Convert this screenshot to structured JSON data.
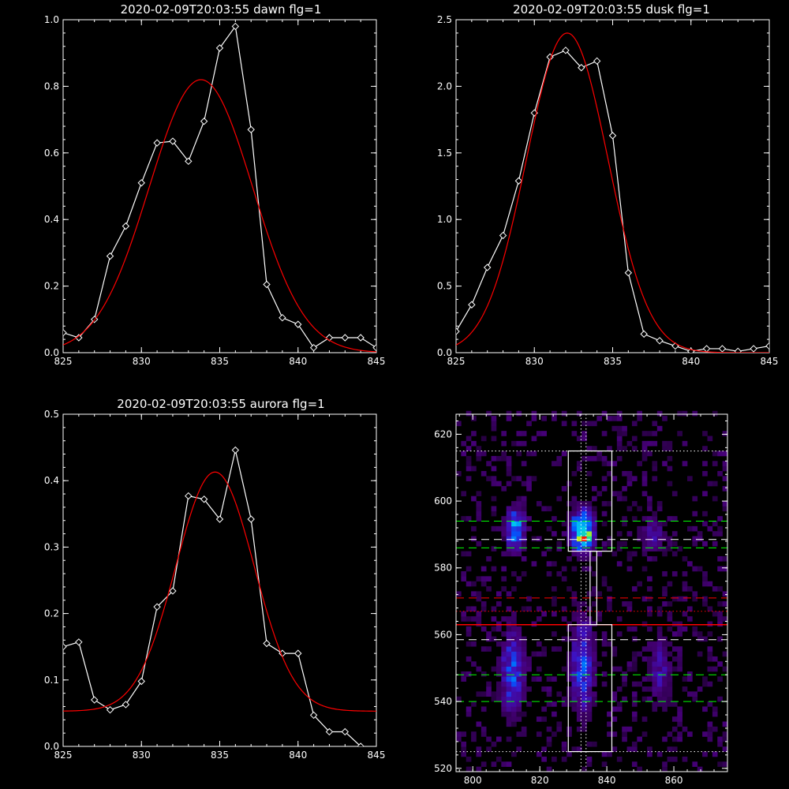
{
  "chart_data": [
    {
      "type": "line",
      "title": "2020-02-09T20:03:55 dawn flg=1",
      "xlim": [
        825,
        845
      ],
      "ylim": [
        0,
        1.0
      ],
      "xticks": [
        "825",
        "830",
        "835",
        "840",
        "845"
      ],
      "yticks": [
        "0.0",
        "0.2",
        "0.4",
        "0.6",
        "0.8",
        "1.0"
      ],
      "series": [
        {
          "style": "data-diamonds",
          "color": "#ffffff",
          "x": [
            825,
            826,
            827,
            828,
            829,
            830,
            831,
            832,
            833,
            834,
            835,
            836,
            837,
            838,
            839,
            840,
            841,
            842,
            843,
            844,
            845
          ],
          "y": [
            0.06,
            0.045,
            0.1,
            0.29,
            0.38,
            0.51,
            0.63,
            0.635,
            0.575,
            0.695,
            0.915,
            0.98,
            0.67,
            0.205,
            0.105,
            0.085,
            0.015,
            0.045,
            0.045,
            0.045,
            0.015
          ]
        },
        {
          "style": "gaussian-fit",
          "color": "#ff0000",
          "amplitude": 0.82,
          "center": 833.8,
          "sigma": 3.3,
          "offset": 0.0
        }
      ]
    },
    {
      "type": "line",
      "title": "2020-02-09T20:03:55 dusk flg=1",
      "xlim": [
        825,
        845
      ],
      "ylim": [
        0,
        2.5
      ],
      "xticks": [
        "825",
        "830",
        "835",
        "840",
        "845"
      ],
      "yticks": [
        "0.0",
        "0.5",
        "1.0",
        "1.5",
        "2.0",
        "2.5"
      ],
      "series": [
        {
          "style": "data-diamonds",
          "color": "#ffffff",
          "x": [
            825,
            826,
            827,
            828,
            829,
            830,
            831,
            832,
            833,
            834,
            835,
            836,
            837,
            838,
            839,
            840,
            841,
            842,
            843,
            844,
            845
          ],
          "y": [
            0.16,
            0.36,
            0.64,
            0.88,
            1.29,
            1.8,
            2.22,
            2.27,
            2.14,
            2.19,
            1.63,
            0.6,
            0.14,
            0.09,
            0.05,
            0.01,
            0.03,
            0.03,
            0.01,
            0.03,
            0.05
          ]
        },
        {
          "style": "gaussian-fit",
          "color": "#ff0000",
          "amplitude": 2.4,
          "center": 832.1,
          "sigma": 2.6,
          "offset": 0.0
        }
      ]
    },
    {
      "type": "line",
      "title": "2020-02-09T20:03:55 aurora flg=1",
      "xlim": [
        825,
        845
      ],
      "ylim": [
        0,
        0.5
      ],
      "xticks": [
        "825",
        "830",
        "835",
        "840",
        "845"
      ],
      "yticks": [
        "0.0",
        "0.1",
        "0.2",
        "0.3",
        "0.4",
        "0.5"
      ],
      "series": [
        {
          "style": "data-diamonds",
          "color": "#ffffff",
          "x": [
            825,
            826,
            827,
            828,
            829,
            830,
            831,
            832,
            833,
            834,
            835,
            836,
            837,
            838,
            839,
            840,
            841,
            842,
            843,
            844
          ],
          "y": [
            0.15,
            0.157,
            0.07,
            0.055,
            0.063,
            0.098,
            0.21,
            0.234,
            0.377,
            0.372,
            0.342,
            0.446,
            0.342,
            0.155,
            0.14,
            0.14,
            0.047,
            0.022,
            0.022,
            0.0
          ]
        },
        {
          "style": "gaussian-fit",
          "color": "#ff0000",
          "amplitude": 0.36,
          "center": 834.7,
          "sigma": 2.5,
          "offset": 0.053
        }
      ]
    },
    {
      "type": "heatmap",
      "title": "",
      "xlim": [
        795,
        876
      ],
      "ylim": [
        519,
        626
      ],
      "xticks": [
        "800",
        "820",
        "840",
        "860"
      ],
      "yticks": [
        "520",
        "540",
        "560",
        "580",
        "600",
        "620"
      ],
      "blobs": [
        {
          "x": 812,
          "y": 591,
          "sx": 2.0,
          "sy": 4.5,
          "amp": 0.55
        },
        {
          "x": 832,
          "y": 590,
          "sx": 2.2,
          "sy": 4.2,
          "amp": 1.0
        },
        {
          "x": 811,
          "y": 548,
          "sx": 2.5,
          "sy": 9.0,
          "amp": 0.42
        },
        {
          "x": 832,
          "y": 550,
          "sx": 2.5,
          "sy": 10.0,
          "amp": 0.45
        },
        {
          "x": 855,
          "y": 549,
          "sx": 2.5,
          "sy": 8.0,
          "amp": 0.25
        },
        {
          "x": 853,
          "y": 589,
          "sx": 3.0,
          "sy": 5.0,
          "amp": 0.22
        }
      ],
      "hlines": [
        {
          "y": 615,
          "color": "#ffffff",
          "dash": "dotted"
        },
        {
          "y": 594,
          "color": "#00ff00",
          "dash": "dashed"
        },
        {
          "y": 588.5,
          "color": "#ffffff",
          "dash": "dashed"
        },
        {
          "y": 586,
          "color": "#00ff00",
          "dash": "dashed"
        },
        {
          "y": 571,
          "color": "#ff0000",
          "dash": "dashed"
        },
        {
          "y": 567,
          "color": "#ff0000",
          "dash": "dotted"
        },
        {
          "y": 563,
          "color": "#ff0000",
          "dash": "solid"
        },
        {
          "y": 558.5,
          "color": "#ffffff",
          "dash": "dashed"
        },
        {
          "y": 548,
          "color": "#00ff00",
          "dash": "dashed"
        },
        {
          "y": 540,
          "color": "#00ff00",
          "dash": "dashed"
        },
        {
          "y": 525,
          "color": "#ffffff",
          "dash": "dotted"
        }
      ],
      "vlines": [
        {
          "x": 832.3,
          "color": "#ffffff",
          "dash": "dotted"
        },
        {
          "x": 833.8,
          "color": "#ffffff",
          "dash": "dotted"
        }
      ],
      "boxes": [
        {
          "x0": 828.5,
          "x1": 841.5,
          "y0": 585,
          "y1": 615
        },
        {
          "x0": 835,
          "x1": 837,
          "y0": 563,
          "y1": 585
        },
        {
          "x0": 828.5,
          "x1": 841.5,
          "y0": 525,
          "y1": 563
        }
      ]
    }
  ]
}
